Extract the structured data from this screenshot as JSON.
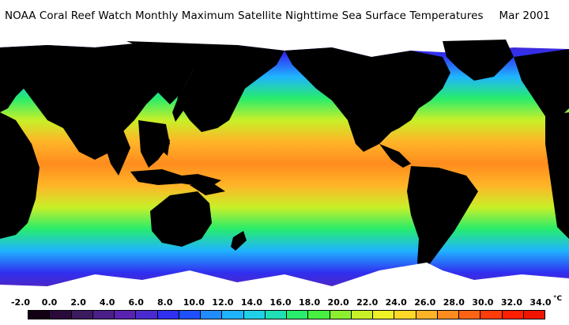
{
  "title": {
    "main": "NOAA Coral Reef Watch Monthly Maximum Satellite Nighttime Sea Surface Temperatures",
    "date": "Mar 2001"
  },
  "legend": {
    "ticks": [
      "-2.0",
      "0.0",
      "2.0",
      "4.0",
      "6.0",
      "8.0",
      "10.0",
      "12.0",
      "14.0",
      "16.0",
      "18.0",
      "20.0",
      "22.0",
      "24.0",
      "26.0",
      "28.0",
      "30.0",
      "32.0",
      "34.0"
    ],
    "unit": "°C",
    "colors": [
      "#140014",
      "#2a0a3a",
      "#3b1a5e",
      "#4a1f8a",
      "#5a22b0",
      "#4a2ad0",
      "#3030f0",
      "#1e50ff",
      "#1f8cff",
      "#1fb4ff",
      "#1fd0e8",
      "#1fe0b4",
      "#28ec6c",
      "#46f040",
      "#8cf030",
      "#c8f028",
      "#f0f028",
      "#ffd828",
      "#ffb428",
      "#ff8c1e",
      "#ff6414",
      "#ff3c0a",
      "#ff1e00",
      "#f01400"
    ]
  },
  "map": {
    "ocean_gradient": [
      "#5a22b0",
      "#3030f0",
      "#1fb4ff",
      "#28ec6c",
      "#c8f028",
      "#ffb428",
      "#ff8c1e",
      "#ffb428",
      "#c8f028",
      "#28ec6c",
      "#1fb4ff",
      "#3030f0",
      "#5a22b0"
    ],
    "land_color": "#000000",
    "ice_color": "#ffffff"
  }
}
